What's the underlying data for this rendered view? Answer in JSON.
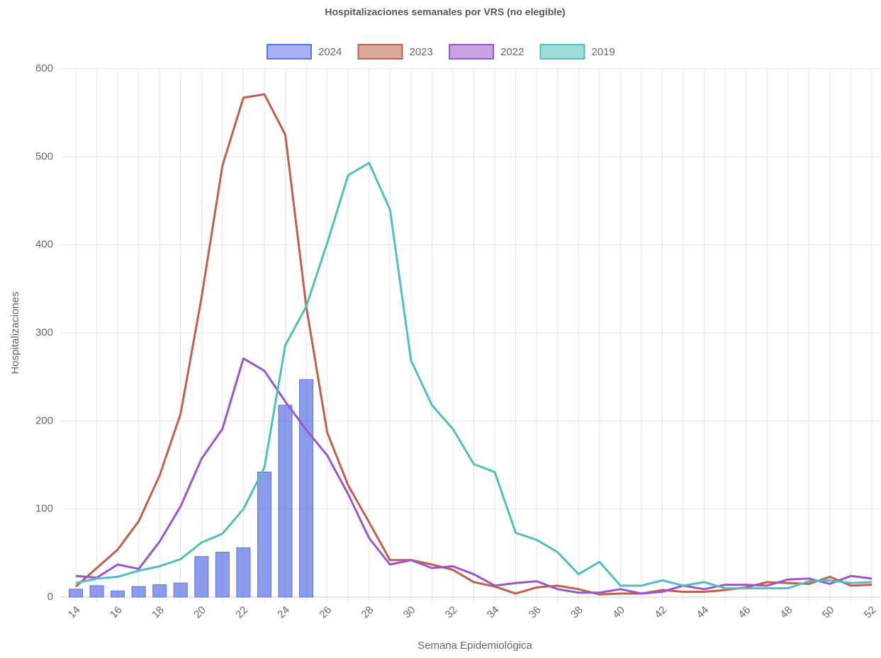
{
  "chart_data": {
    "type": "bar",
    "title": "Hospitalizaciones semanales por VRS (no elegible)",
    "x_label": "Semana Epidemiológica",
    "y_label": "Hospitalizaciones",
    "categories": [
      "14",
      null,
      "16",
      null,
      "18",
      null,
      "20",
      null,
      "22",
      null,
      "24",
      null,
      "26",
      null,
      "28",
      null,
      "30",
      null,
      "32",
      null,
      "34",
      null,
      "36",
      null,
      "38",
      null,
      "40",
      null,
      "42",
      null,
      "44",
      null,
      "46",
      null,
      "48",
      null,
      "50",
      null,
      "52"
    ],
    "ylim": [
      0,
      600
    ],
    "yticks": [
      0,
      100,
      200,
      300,
      400,
      500,
      600
    ],
    "grid": true,
    "legend": "top",
    "series": [
      {
        "name": "2024",
        "type": "bar",
        "color": "#5b72e6",
        "values": [
          9,
          13,
          7,
          12,
          14,
          16,
          46,
          51,
          56,
          142,
          218,
          247,
          null,
          null,
          null,
          null,
          null,
          null,
          null,
          null,
          null,
          null,
          null,
          null,
          null,
          null,
          null,
          null,
          null,
          null,
          null,
          null,
          null,
          null,
          null,
          null,
          null,
          null,
          null
        ]
      },
      {
        "name": "2023",
        "type": "line",
        "color": "#c0604a",
        "values": [
          12,
          33,
          54,
          86,
          138,
          208,
          340,
          490,
          567,
          571,
          525,
          330,
          187,
          127,
          85,
          42,
          42,
          37,
          31,
          17,
          12,
          4,
          11,
          13,
          9,
          3,
          4,
          4,
          8,
          6,
          6,
          8,
          11,
          17,
          16,
          15,
          23,
          13,
          14
        ]
      },
      {
        "name": "2022",
        "type": "line",
        "color": "#9a55d0",
        "values": [
          24,
          22,
          37,
          32,
          63,
          103,
          157,
          191,
          271,
          257,
          222,
          190,
          161,
          117,
          67,
          37,
          42,
          33,
          35,
          26,
          13,
          16,
          18,
          9,
          5,
          5,
          9,
          4,
          6,
          13,
          9,
          14,
          14,
          13,
          20,
          21,
          15,
          24,
          21
        ]
      },
      {
        "name": "2019",
        "type": "line",
        "color": "#4fbfbf",
        "values": [
          16,
          21,
          23,
          30,
          35,
          43,
          62,
          72,
          100,
          147,
          286,
          330,
          402,
          479,
          493,
          440,
          269,
          218,
          191,
          151,
          142,
          73,
          65,
          51,
          26,
          40,
          13,
          13,
          19,
          13,
          17,
          10,
          10,
          10,
          10,
          18,
          19,
          16,
          17
        ]
      }
    ]
  }
}
